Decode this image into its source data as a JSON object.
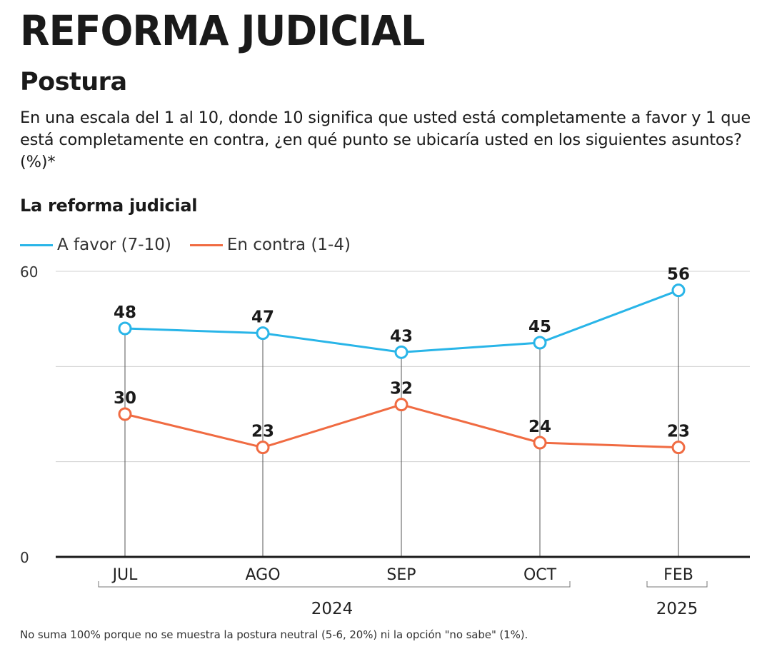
{
  "header": {
    "title": "REFORMA JUDICIAL",
    "subtitle": "Postura",
    "question": "En una escala del 1 al 10, donde 10 significa que usted está completamente a favor y 1 que está completamente en contra, ¿en qué punto se ubicaría usted en los siguientes asuntos? (%)*"
  },
  "footnote": "No suma 100% porque no se muestra la postura neutral (5-6, 20%) ni la opción \"no sabe\" (1%).",
  "colors": {
    "favor": "#29b5e8",
    "contra": "#f06b42",
    "axis": "#1a1a1a",
    "grid": "#d0d0d0"
  },
  "chart_data": {
    "type": "line",
    "title": "La reforma judicial",
    "categories": [
      "JUL",
      "AGO",
      "SEP",
      "OCT",
      "FEB"
    ],
    "year_groups": [
      {
        "label": "2024",
        "categories": [
          "JUL",
          "AGO",
          "SEP",
          "OCT"
        ]
      },
      {
        "label": "2025",
        "categories": [
          "FEB"
        ]
      }
    ],
    "series": [
      {
        "name": "A favor (7-10)",
        "color": "#29b5e8",
        "values": [
          48,
          47,
          43,
          45,
          56
        ]
      },
      {
        "name": "En contra (1-4)",
        "color": "#f06b42",
        "values": [
          30,
          23,
          32,
          24,
          23
        ]
      }
    ],
    "ylim": [
      0,
      60
    ],
    "yticks": [
      0,
      60
    ],
    "gridlines": [
      20,
      40,
      60
    ],
    "legend_position": "top-left"
  }
}
